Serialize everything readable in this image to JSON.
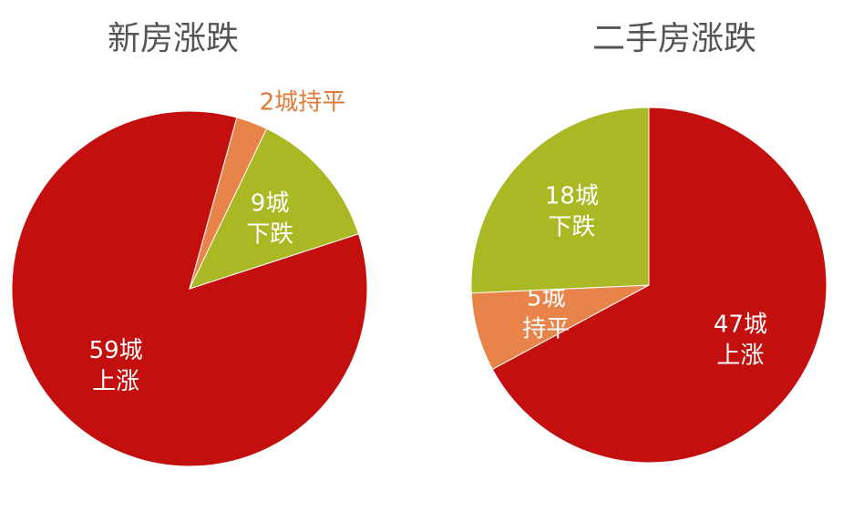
{
  "chart_data": [
    {
      "type": "pie",
      "title": "新房涨跌",
      "categories": [
        "上涨",
        "持平",
        "下跌"
      ],
      "values": [
        59,
        2,
        9
      ],
      "value_labels": [
        "59城",
        "2城",
        "9城"
      ],
      "colors": [
        "#c40f0f",
        "#e8844a",
        "#a9b823"
      ]
    },
    {
      "type": "pie",
      "title": "二手房涨跌",
      "categories": [
        "上涨",
        "持平",
        "下跌"
      ],
      "values": [
        47,
        5,
        18
      ],
      "value_labels": [
        "47城",
        "5城",
        "18城"
      ],
      "colors": [
        "#c40f0f",
        "#e8844a",
        "#a9b823"
      ]
    }
  ]
}
